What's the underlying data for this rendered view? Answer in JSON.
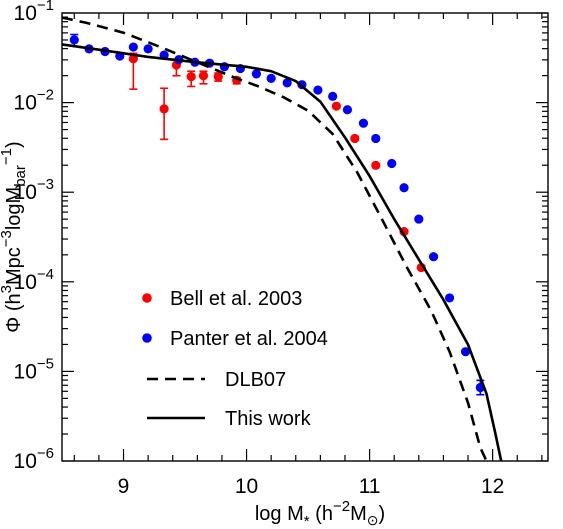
{
  "chart_data": {
    "type": "scatter",
    "xlabel": {
      "prefix": "log M",
      "sub": "*",
      "mid": " (h",
      "sup": "−2",
      "mid2": "M",
      "sub2": "⊙",
      "suffix": ")"
    },
    "ylabel": {
      "prefix": "Φ  (h",
      "sup1": "3",
      "mid1": "Mpc",
      "sup2": "−3",
      "mid2": "logM",
      "sub": "bar",
      "sup3": "−1",
      "suffix": ")"
    },
    "xlim": [
      8.5,
      12.45
    ],
    "ylim_log10": [
      -6,
      -1
    ],
    "x_ticks": [
      "9",
      "10",
      "11",
      "12"
    ],
    "x_tick_values": [
      9,
      10,
      11,
      12
    ],
    "y_ticks": [
      {
        "base": "10",
        "exp": "−6",
        "log": -6
      },
      {
        "base": "10",
        "exp": "−5",
        "log": -5
      },
      {
        "base": "10",
        "exp": "−4",
        "log": -4
      },
      {
        "base": "10",
        "exp": "−3",
        "log": -3
      },
      {
        "base": "10",
        "exp": "−2",
        "log": -2
      },
      {
        "base": "10",
        "exp": "−1",
        "log": -1
      }
    ],
    "series": [
      {
        "name": "Bell et al. 2003",
        "kind": "points",
        "color": "#ff0000",
        "points": [
          {
            "x": 9.08,
            "y": -1.51,
            "err_lo": -1.85,
            "err_hi": -1.45
          },
          {
            "x": 9.33,
            "y": -2.07,
            "err_lo": -2.41,
            "err_hi": -1.84
          },
          {
            "x": 9.43,
            "y": -1.58,
            "err_lo": -1.7,
            "err_hi": -1.52
          },
          {
            "x": 9.55,
            "y": -1.71,
            "err_lo": -1.82,
            "err_hi": -1.65
          },
          {
            "x": 9.65,
            "y": -1.7,
            "err_lo": -1.79,
            "err_hi": -1.65
          },
          {
            "x": 9.77,
            "y": -1.71,
            "err_lo": -1.76,
            "err_hi": -1.67
          },
          {
            "x": 9.92,
            "y": -1.75,
            "err_lo": -1.79,
            "err_hi": -1.72
          },
          {
            "x": 10.73,
            "y": -2.04
          },
          {
            "x": 10.88,
            "y": -2.4
          },
          {
            "x": 11.05,
            "y": -2.7
          },
          {
            "x": 11.28,
            "y": -3.44
          },
          {
            "x": 11.42,
            "y": -3.84
          }
        ]
      },
      {
        "name": "Panter et al. 2004",
        "kind": "points",
        "color": "#0000ff",
        "points": [
          {
            "x": 8.6,
            "y": -1.3,
            "err_lo": -1.37,
            "err_hi": -1.24
          },
          {
            "x": 8.72,
            "y": -1.4
          },
          {
            "x": 8.85,
            "y": -1.43
          },
          {
            "x": 8.97,
            "y": -1.48
          },
          {
            "x": 9.08,
            "y": -1.38
          },
          {
            "x": 9.2,
            "y": -1.4
          },
          {
            "x": 9.33,
            "y": -1.47
          },
          {
            "x": 9.45,
            "y": -1.52
          },
          {
            "x": 9.58,
            "y": -1.55
          },
          {
            "x": 9.7,
            "y": -1.56
          },
          {
            "x": 9.82,
            "y": -1.6
          },
          {
            "x": 9.95,
            "y": -1.62
          },
          {
            "x": 10.08,
            "y": -1.68
          },
          {
            "x": 10.2,
            "y": -1.73
          },
          {
            "x": 10.33,
            "y": -1.78
          },
          {
            "x": 10.45,
            "y": -1.8
          },
          {
            "x": 10.58,
            "y": -1.86
          },
          {
            "x": 10.7,
            "y": -1.93
          },
          {
            "x": 10.82,
            "y": -2.08
          },
          {
            "x": 10.95,
            "y": -2.23
          },
          {
            "x": 11.05,
            "y": -2.4
          },
          {
            "x": 11.18,
            "y": -2.68
          },
          {
            "x": 11.28,
            "y": -2.95
          },
          {
            "x": 11.4,
            "y": -3.3
          },
          {
            "x": 11.52,
            "y": -3.72
          },
          {
            "x": 11.65,
            "y": -4.18
          },
          {
            "x": 11.78,
            "y": -4.78
          },
          {
            "x": 11.9,
            "y": -5.18,
            "err_lo": -5.26,
            "err_hi": -5.1
          }
        ]
      },
      {
        "name": "DLB07",
        "kind": "line",
        "dash": true,
        "color": "#000000",
        "points": [
          {
            "x": 8.5,
            "y": -1.05
          },
          {
            "x": 8.7,
            "y": -1.11
          },
          {
            "x": 9.0,
            "y": -1.22
          },
          {
            "x": 9.3,
            "y": -1.38
          },
          {
            "x": 9.6,
            "y": -1.55
          },
          {
            "x": 9.9,
            "y": -1.72
          },
          {
            "x": 10.1,
            "y": -1.82
          },
          {
            "x": 10.3,
            "y": -1.94
          },
          {
            "x": 10.5,
            "y": -2.09
          },
          {
            "x": 10.7,
            "y": -2.35
          },
          {
            "x": 10.9,
            "y": -2.78
          },
          {
            "x": 11.1,
            "y": -3.3
          },
          {
            "x": 11.3,
            "y": -3.83
          },
          {
            "x": 11.5,
            "y": -4.32
          },
          {
            "x": 11.65,
            "y": -4.78
          },
          {
            "x": 11.8,
            "y": -5.35
          },
          {
            "x": 11.9,
            "y": -5.85
          },
          {
            "x": 11.95,
            "y": -6.0
          }
        ]
      },
      {
        "name": "This work",
        "kind": "line",
        "dash": false,
        "color": "#000000",
        "points": [
          {
            "x": 8.5,
            "y": -1.35
          },
          {
            "x": 8.8,
            "y": -1.41
          },
          {
            "x": 9.2,
            "y": -1.49
          },
          {
            "x": 9.6,
            "y": -1.55
          },
          {
            "x": 10.0,
            "y": -1.6
          },
          {
            "x": 10.2,
            "y": -1.65
          },
          {
            "x": 10.4,
            "y": -1.76
          },
          {
            "x": 10.6,
            "y": -1.99
          },
          {
            "x": 10.8,
            "y": -2.39
          },
          {
            "x": 11.0,
            "y": -2.82
          },
          {
            "x": 11.2,
            "y": -3.3
          },
          {
            "x": 11.4,
            "y": -3.75
          },
          {
            "x": 11.6,
            "y": -4.2
          },
          {
            "x": 11.8,
            "y": -4.7
          },
          {
            "x": 11.95,
            "y": -5.25
          },
          {
            "x": 12.02,
            "y": -5.68
          },
          {
            "x": 12.07,
            "y": -6.0
          }
        ]
      }
    ],
    "legend_placement": "lower-left",
    "grid": false
  }
}
